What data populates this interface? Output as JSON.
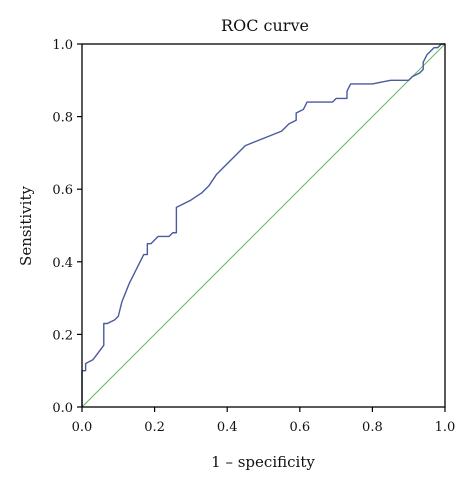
{
  "chart_data": {
    "type": "line",
    "title": "ROC curve",
    "xlabel": "1 – specificity",
    "ylabel": "Sensitivity",
    "xlim": [
      0.0,
      1.0
    ],
    "ylim": [
      0.0,
      1.0
    ],
    "x_ticks": [
      "0.0",
      "0.2",
      "0.4",
      "0.6",
      "0.8",
      "1.0"
    ],
    "y_ticks": [
      "0.0",
      "0.2",
      "0.4",
      "0.6",
      "0.8",
      "1.0"
    ],
    "grid": false,
    "legend": "none",
    "colors": {
      "roc": "#4a5a9e",
      "reference": "#66bb66"
    },
    "series": [
      {
        "x": [
          0.0,
          0.0,
          0.01,
          0.01,
          0.03,
          0.06,
          0.06,
          0.07,
          0.09,
          0.1,
          0.11,
          0.13,
          0.15,
          0.17,
          0.18,
          0.18,
          0.19,
          0.2,
          0.21,
          0.24,
          0.25,
          0.26,
          0.26,
          0.28,
          0.3,
          0.33,
          0.35,
          0.37,
          0.4,
          0.45,
          0.5,
          0.55,
          0.57,
          0.59,
          0.59,
          0.61,
          0.62,
          0.65,
          0.68,
          0.69,
          0.7,
          0.71,
          0.72,
          0.73,
          0.73,
          0.74,
          0.76,
          0.8,
          0.85,
          0.9,
          0.91,
          0.91,
          0.93,
          0.94,
          0.94,
          0.95,
          0.96,
          0.97,
          0.98,
          0.99,
          1.0
        ],
        "y": [
          0.0,
          0.1,
          0.1,
          0.12,
          0.13,
          0.17,
          0.23,
          0.23,
          0.24,
          0.25,
          0.29,
          0.34,
          0.38,
          0.42,
          0.42,
          0.45,
          0.45,
          0.46,
          0.47,
          0.47,
          0.48,
          0.48,
          0.55,
          0.56,
          0.57,
          0.59,
          0.61,
          0.64,
          0.67,
          0.72,
          0.74,
          0.76,
          0.78,
          0.79,
          0.81,
          0.82,
          0.84,
          0.84,
          0.84,
          0.84,
          0.85,
          0.85,
          0.85,
          0.85,
          0.87,
          0.89,
          0.89,
          0.89,
          0.9,
          0.9,
          0.91,
          0.91,
          0.92,
          0.93,
          0.95,
          0.97,
          0.98,
          0.99,
          0.99,
          1.0,
          1.0
        ]
      },
      {
        "x": [
          0.0,
          1.0
        ],
        "y": [
          0.0,
          1.0
        ]
      }
    ]
  }
}
